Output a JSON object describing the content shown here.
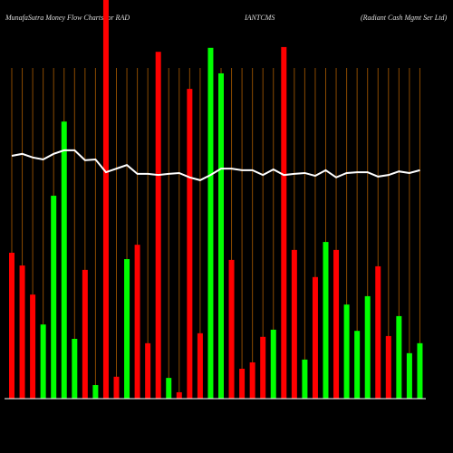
{
  "chart_data": {
    "type": "bar",
    "title_parts": [
      "MunafaSutra  Money Flow Charts for RAD",
      "IANTCMS",
      "(Radiant Cash Mgmt Ser Ltd)"
    ],
    "categories": [
      null,
      null,
      null,
      null,
      null,
      null,
      null,
      null,
      null,
      null,
      null,
      null,
      null,
      null,
      null,
      null,
      null,
      null,
      null,
      null,
      null,
      null,
      null,
      null,
      null,
      null,
      null,
      null,
      null,
      null,
      null,
      null,
      null,
      null,
      null,
      null,
      null,
      null,
      null,
      null
    ],
    "values": [
      36.6,
      33.4,
      26.1,
      18.6,
      50.9,
      69.5,
      15,
      32.3,
      3.4,
      100,
      5.5,
      35,
      38.6,
      13.9,
      87,
      5.2,
      1.6,
      77.7,
      16.4,
      88,
      81.6,
      34.8,
      7.5,
      9.1,
      15.5,
      17.3,
      88.2,
      37.3,
      9.8,
      30.5,
      39.3,
      37.3,
      23.6,
      17,
      25.7,
      33.2,
      15.7,
      20.7,
      11.4,
      13.9
    ],
    "colors": [
      "#ff0000",
      "#ff0000",
      "#ff0000",
      "#00ff00",
      "#00ff00",
      "#00ff00",
      "#00ff00",
      "#ff0000",
      "#00ff00",
      "#ff0000",
      "#ff0000",
      "#00ff00",
      "#ff0000",
      "#ff0000",
      "#ff0000",
      "#00ff00",
      "#ff0000",
      "#ff0000",
      "#ff0000",
      "#00ff00",
      "#00ff00",
      "#ff0000",
      "#ff0000",
      "#ff0000",
      "#ff0000",
      "#00ff00",
      "#ff0000",
      "#ff0000",
      "#00ff00",
      "#ff0000",
      "#00ff00",
      "#ff0000",
      "#00ff00",
      "#00ff00",
      "#00ff00",
      "#ff0000",
      "#ff0000",
      "#00ff00",
      "#00ff00",
      "#00ff00"
    ],
    "line_values": [
      60.9,
      61.4,
      60.5,
      60,
      61.4,
      62.3,
      62.3,
      59.8,
      60,
      56.8,
      57.7,
      58.6,
      56.4,
      56.4,
      56.1,
      56.4,
      56.6,
      55.5,
      54.8,
      56.1,
      57.7,
      57.7,
      57.3,
      57.3,
      56.1,
      57.5,
      56.1,
      56.4,
      56.6,
      55.9,
      57.3,
      55.5,
      56.6,
      56.8,
      56.8,
      55.7,
      56.1,
      57,
      56.6,
      57.3
    ],
    "line_color": "#ffffff",
    "grid_color": "#8b4a00",
    "ylim": [
      0,
      100
    ]
  }
}
